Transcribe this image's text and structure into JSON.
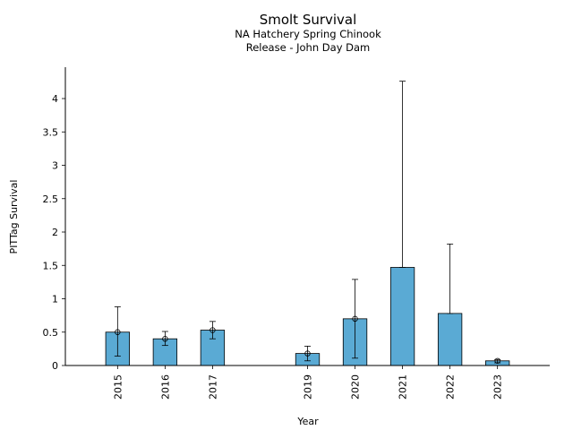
{
  "chart_data": {
    "type": "bar",
    "title": "Smolt Survival",
    "subtitle_lines": [
      "NA Hatchery Spring Chinook",
      "Release - John Day Dam"
    ],
    "xlabel": "Year",
    "ylabel": "PITTag Survival",
    "categories": [
      "2015",
      "2016",
      "2017",
      "2019",
      "2020",
      "2021",
      "2022",
      "2023"
    ],
    "x": [
      2015,
      2016,
      2017,
      2019,
      2020,
      2021,
      2022,
      2023
    ],
    "values": [
      0.5,
      0.4,
      0.53,
      0.18,
      0.7,
      1.47,
      0.78,
      0.07
    ],
    "point_estimates": [
      0.5,
      0.4,
      0.53,
      0.18,
      0.7,
      null,
      null,
      0.07
    ],
    "error_low": [
      0.14,
      0.3,
      0.4,
      0.07,
      0.11,
      1.47,
      0.78,
      0.04
    ],
    "error_high": [
      0.88,
      0.51,
      0.66,
      0.29,
      1.29,
      4.26,
      1.82,
      0.09
    ],
    "yticks": [
      "0",
      "0.5",
      "1",
      "1.5",
      "2",
      "2.5",
      "3",
      "3.5",
      "4"
    ],
    "ytick_values": [
      0,
      0.5,
      1,
      1.5,
      2,
      2.5,
      3,
      3.5,
      4
    ],
    "ylim": [
      0,
      4.47
    ],
    "xlim": [
      2013.9,
      2024.1
    ],
    "bar_color": "#5aaad4",
    "edge_color": "#000000",
    "grid": false,
    "legend": "none"
  }
}
